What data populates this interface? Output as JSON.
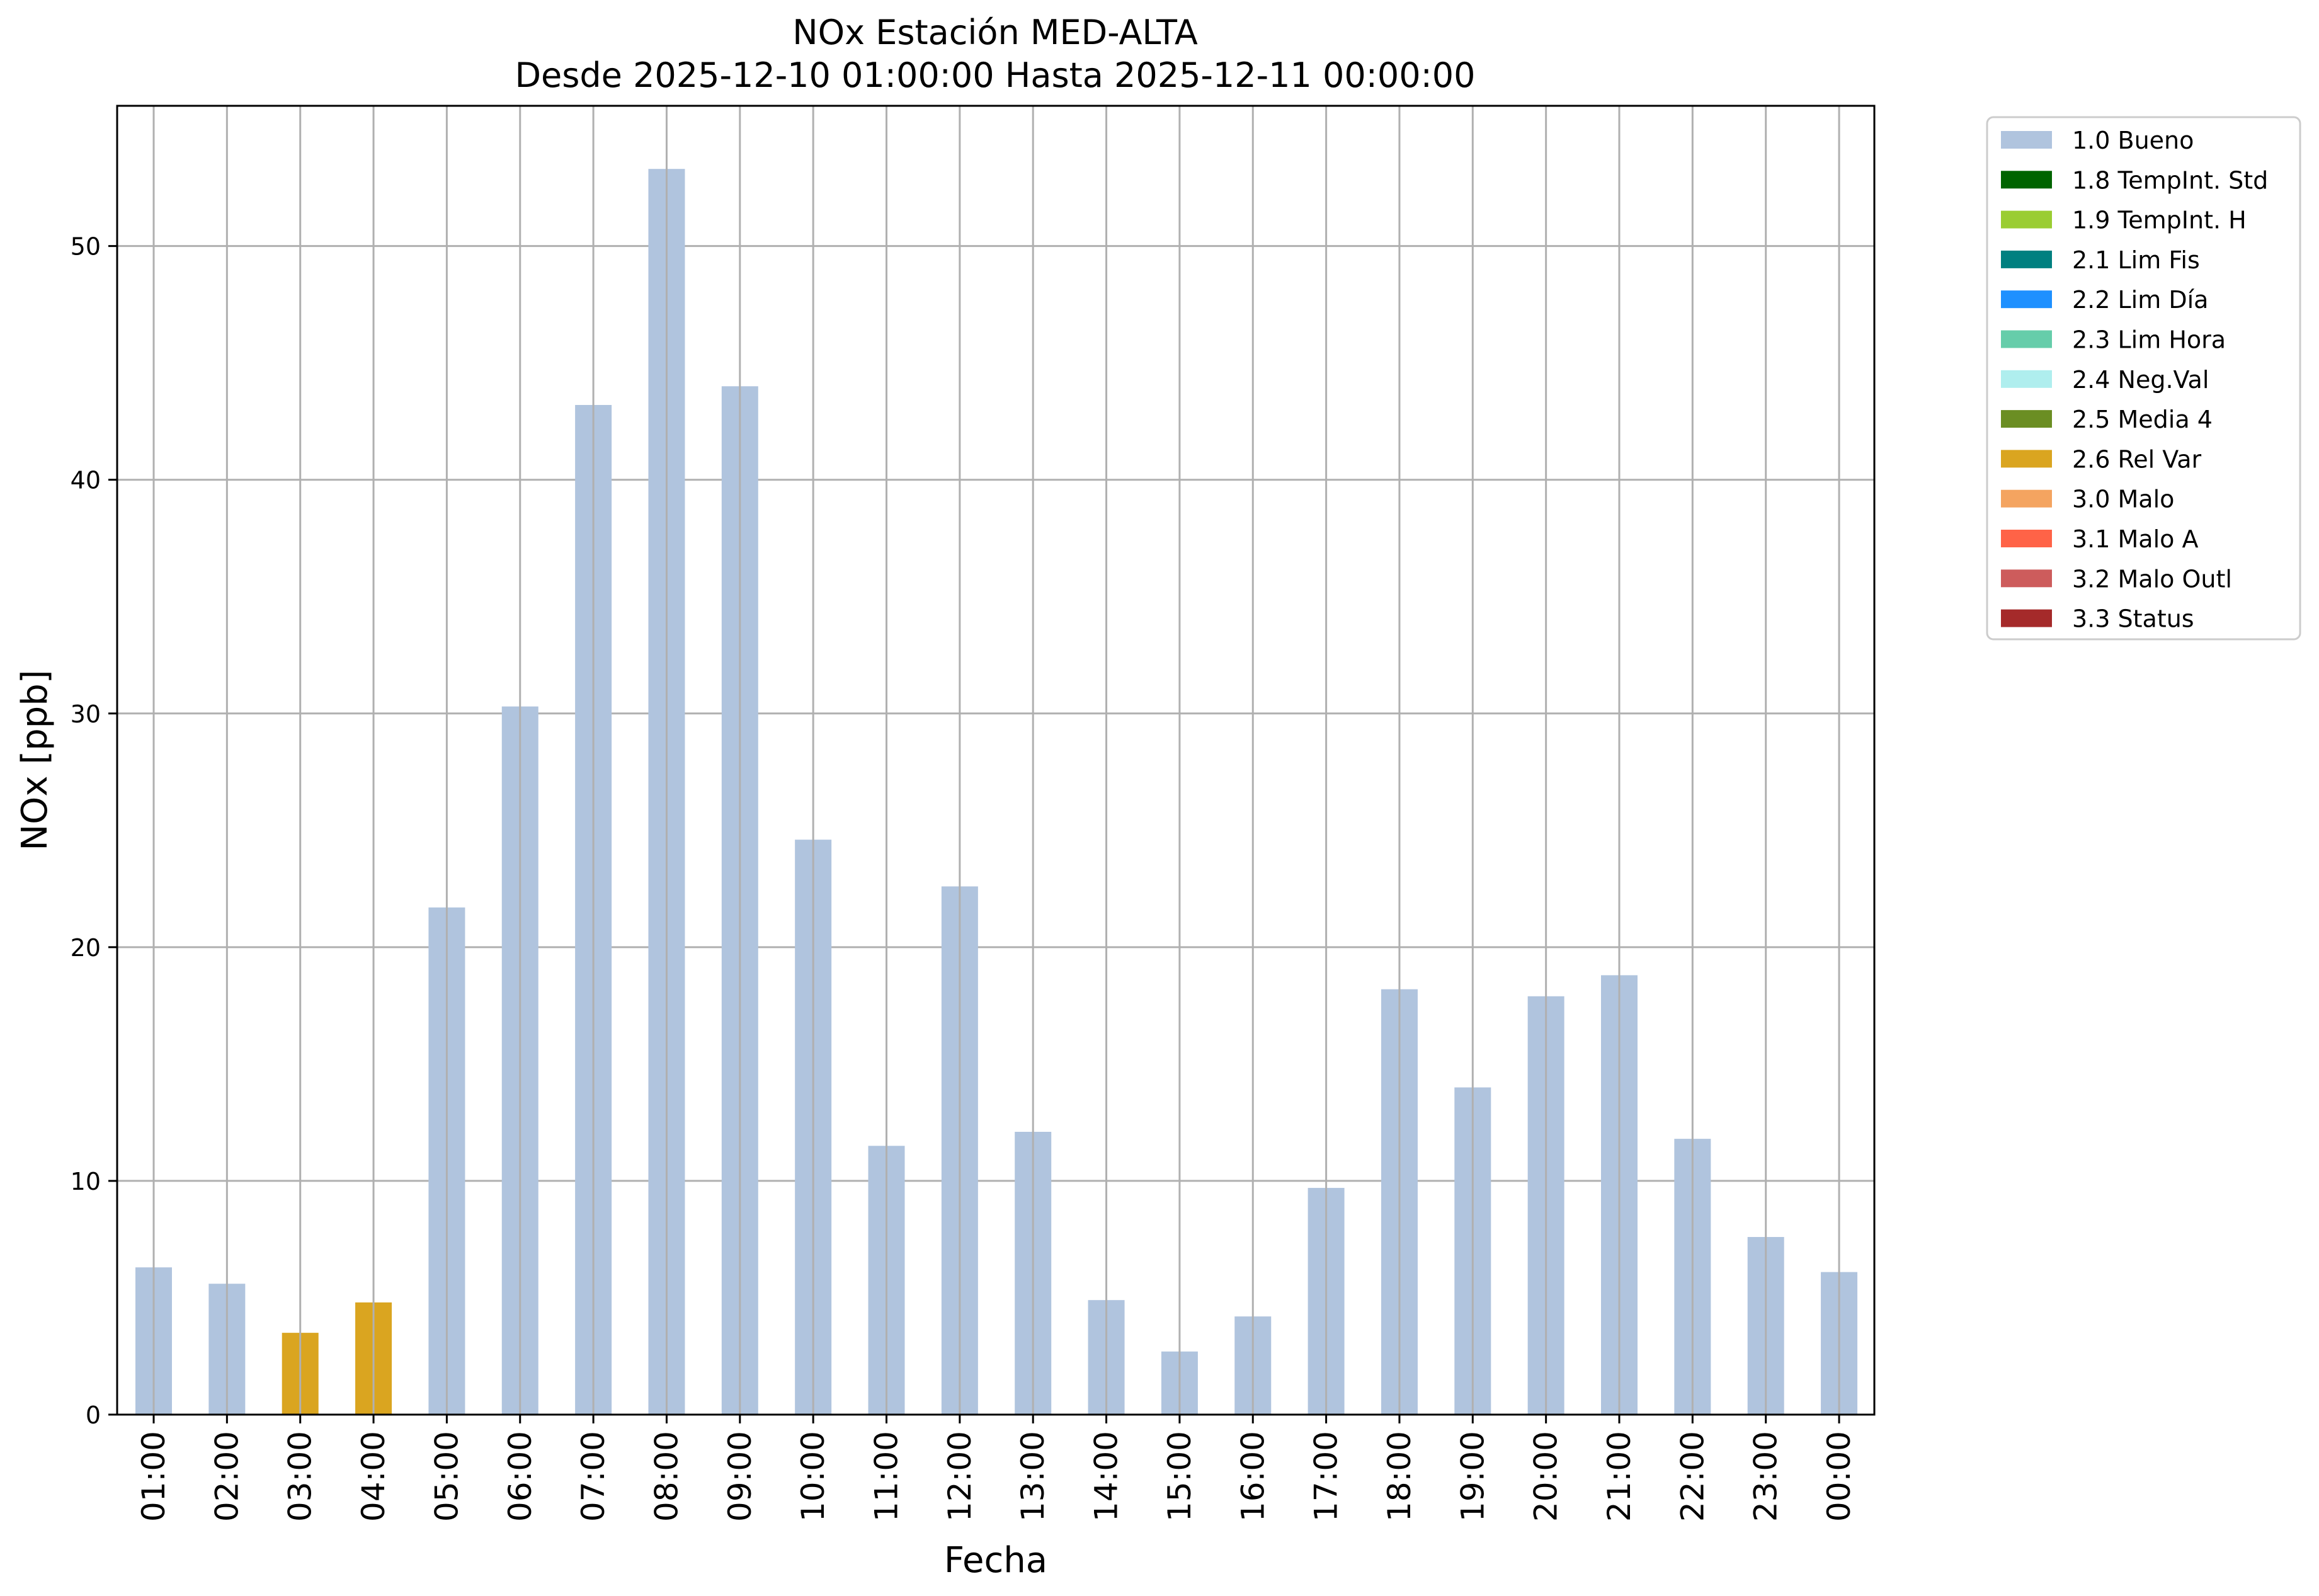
{
  "chart_data": {
    "type": "bar",
    "title": "NOx Estación MED-ALTA",
    "subtitle": "Desde 2025-12-10 01:00:00 Hasta 2025-12-11 00:00:00",
    "xlabel": "Fecha",
    "ylabel": "NOx [ppb]",
    "ylim": [
      0,
      56
    ],
    "yticks": [
      0,
      10,
      20,
      30,
      40,
      50
    ],
    "grid": true,
    "legend_position": "outside-top-right",
    "categories": [
      "01:00",
      "02:00",
      "03:00",
      "04:00",
      "05:00",
      "06:00",
      "07:00",
      "08:00",
      "09:00",
      "10:00",
      "11:00",
      "12:00",
      "13:00",
      "14:00",
      "15:00",
      "16:00",
      "17:00",
      "18:00",
      "19:00",
      "20:00",
      "21:00",
      "22:00",
      "23:00",
      "00:00"
    ],
    "values": [
      6.3,
      5.6,
      3.5,
      4.8,
      21.7,
      30.3,
      43.2,
      53.3,
      44.0,
      24.6,
      11.5,
      22.6,
      12.1,
      4.9,
      2.7,
      4.2,
      9.7,
      18.2,
      14.0,
      17.9,
      18.8,
      11.8,
      7.6,
      6.1
    ],
    "flags": [
      "1.0 Bueno",
      "1.0 Bueno",
      "2.6 Rel Var",
      "2.6 Rel Var",
      "1.0 Bueno",
      "1.0 Bueno",
      "1.0 Bueno",
      "1.0 Bueno",
      "1.0 Bueno",
      "1.0 Bueno",
      "1.0 Bueno",
      "1.0 Bueno",
      "1.0 Bueno",
      "1.0 Bueno",
      "1.0 Bueno",
      "1.0 Bueno",
      "1.0 Bueno",
      "1.0 Bueno",
      "1.0 Bueno",
      "1.0 Bueno",
      "1.0 Bueno",
      "1.0 Bueno",
      "1.0 Bueno",
      "1.0 Bueno"
    ],
    "legend": [
      {
        "label": "1.0 Bueno",
        "color": "#b0c4de"
      },
      {
        "label": "1.8 TempInt. Std",
        "color": "#006400"
      },
      {
        "label": "1.9 TempInt. H",
        "color": "#9acd32"
      },
      {
        "label": "2.1 Lim Fis",
        "color": "#008080"
      },
      {
        "label": "2.2 Lim Día",
        "color": "#1e90ff"
      },
      {
        "label": "2.3 Lim Hora",
        "color": "#66cdaa"
      },
      {
        "label": "2.4 Neg.Val",
        "color": "#afeeee"
      },
      {
        "label": "2.5 Media 4",
        "color": "#6b8e23"
      },
      {
        "label": "2.6 Rel Var",
        "color": "#daa520"
      },
      {
        "label": "3.0 Malo",
        "color": "#f4a460"
      },
      {
        "label": "3.1 Malo A",
        "color": "#ff6347"
      },
      {
        "label": "3.2 Malo Outl",
        "color": "#cd5c5c"
      },
      {
        "label": "3.3 Status",
        "color": "#a52a2a"
      }
    ]
  }
}
